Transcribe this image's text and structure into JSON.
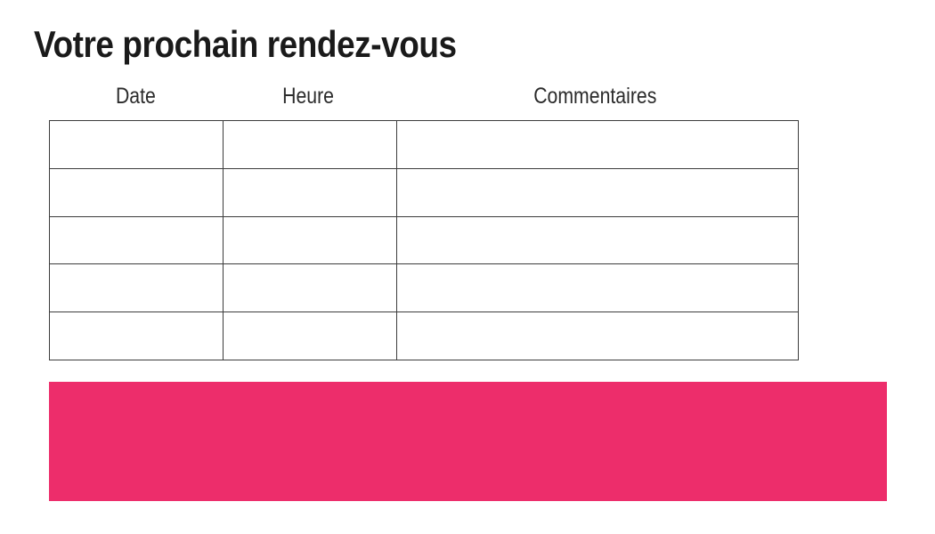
{
  "page": {
    "title": "Votre prochain rendez-vous"
  },
  "table": {
    "columns": [
      {
        "label": "Date"
      },
      {
        "label": "Heure"
      },
      {
        "label": "Commentaires"
      }
    ],
    "row_count": 5,
    "rows": [
      [
        "",
        "",
        ""
      ],
      [
        "",
        "",
        ""
      ],
      [
        "",
        "",
        ""
      ],
      [
        "",
        "",
        ""
      ],
      [
        "",
        "",
        ""
      ]
    ]
  },
  "highlight": {
    "label": "",
    "color": "#ED2D6B"
  },
  "colors": {
    "accent": "#ED2D6B",
    "table_border": "#3C3C3C",
    "text": "#1A1A1A"
  }
}
